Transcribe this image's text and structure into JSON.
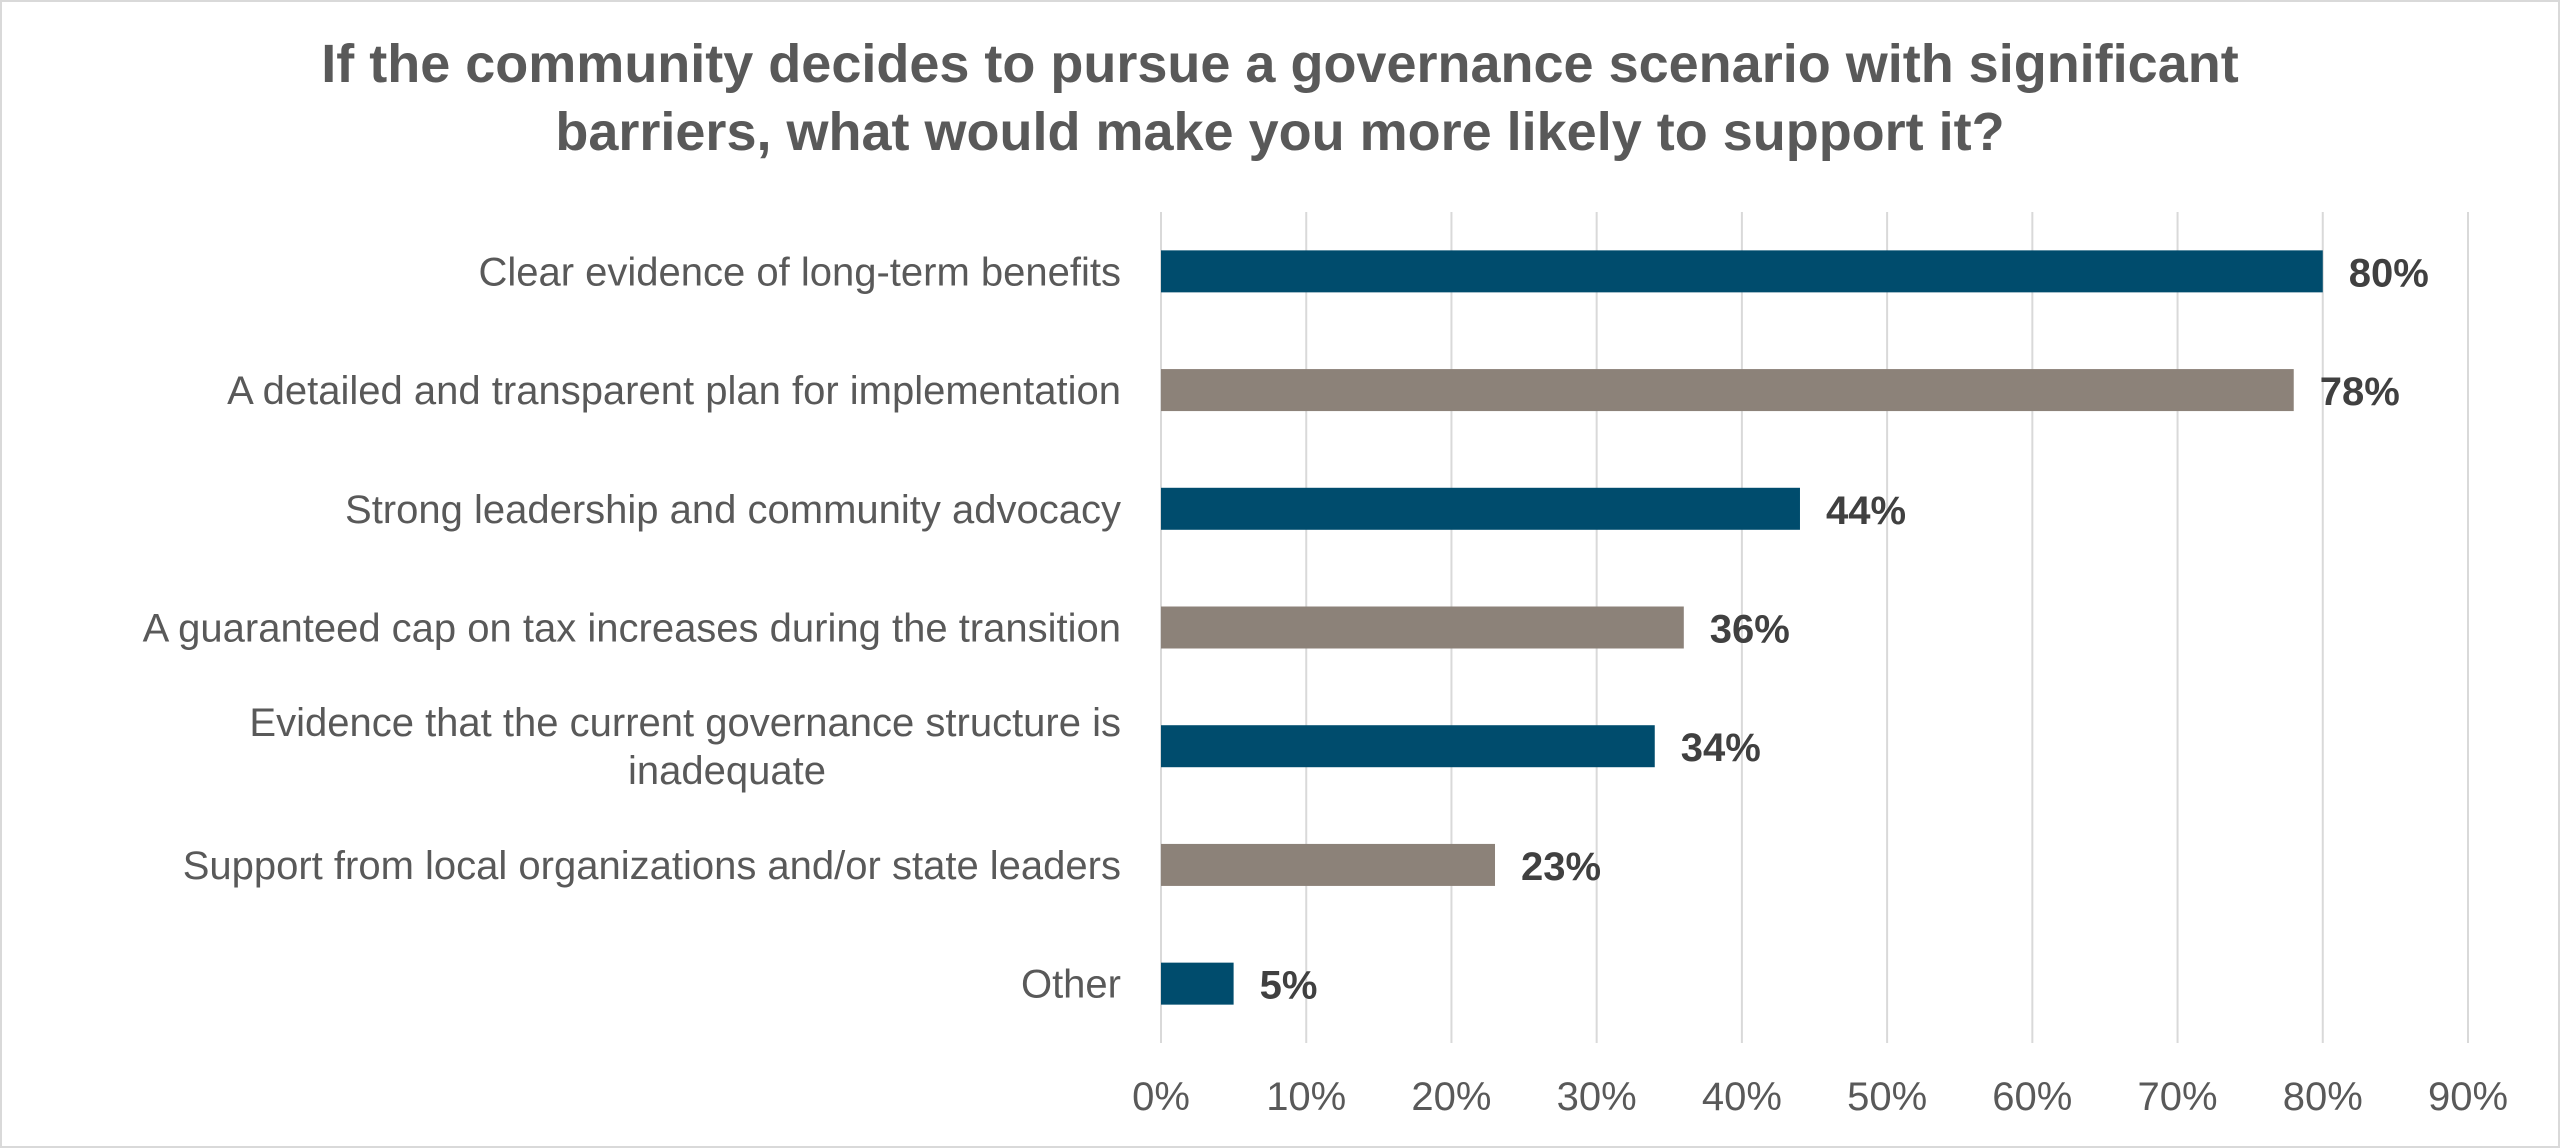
{
  "chart_data": {
    "type": "bar",
    "orientation": "horizontal",
    "title": "If the community decides to pursue a governance scenario with significant\nbarriers, what would make you more likely to support it?",
    "categories": [
      "Clear evidence of long-term benefits",
      "A detailed and transparent plan for implementation",
      "Strong leadership and community advocacy",
      "A guaranteed cap on tax increases during the transition",
      "Evidence that the current governance structure is\ninadequate",
      "Support from local organizations and/or state leaders",
      "Other"
    ],
    "values": [
      80,
      78,
      44,
      36,
      34,
      23,
      5
    ],
    "data_labels": [
      "80%",
      "78%",
      "44%",
      "36%",
      "34%",
      "23%",
      "5%"
    ],
    "bar_colors": [
      "#004c6d",
      "#8c8279",
      "#004c6d",
      "#8c8279",
      "#004c6d",
      "#8c8279",
      "#004c6d"
    ],
    "xlim": [
      0,
      90
    ],
    "x_ticks": [
      0,
      10,
      20,
      30,
      40,
      50,
      60,
      70,
      80,
      90
    ],
    "x_tick_labels": [
      "0%",
      "10%",
      "20%",
      "30%",
      "40%",
      "50%",
      "60%",
      "70%",
      "80%",
      "90%"
    ],
    "grid": true,
    "grid_color": "#d9d9d9",
    "title_color": "#595959",
    "label_color": "#595959",
    "data_label_color": "#404040",
    "xlabel": "",
    "ylabel": ""
  }
}
